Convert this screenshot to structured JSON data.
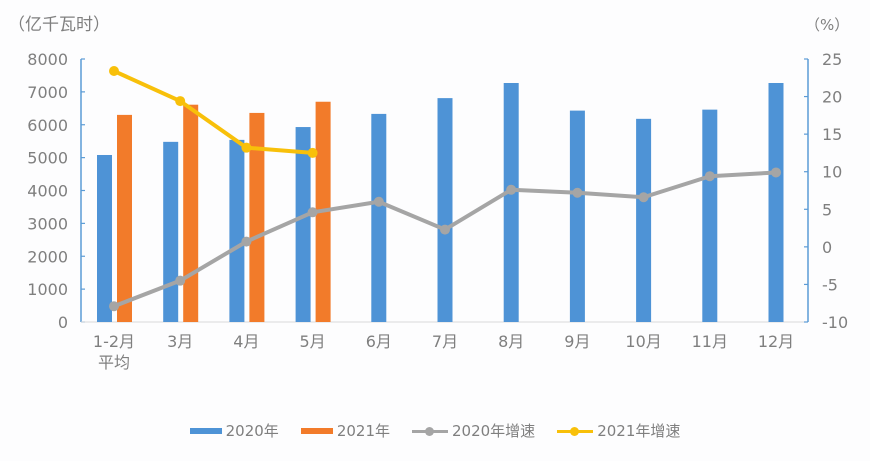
{
  "chart_data": {
    "type": "bar+line (dual axis)",
    "title": "",
    "ylabel_left": "（亿千瓦时）",
    "ylabel_right": "（%）",
    "xlabel": "",
    "categories": [
      "1-2月\n平均",
      "3月",
      "4月",
      "5月",
      "6月",
      "7月",
      "8月",
      "9月",
      "10月",
      "11月",
      "12月"
    ],
    "category_labels": [
      {
        "line1": "1-2月",
        "line2": "平均"
      },
      {
        "line1": "3月",
        "line2": ""
      },
      {
        "line1": "4月",
        "line2": ""
      },
      {
        "line1": "5月",
        "line2": ""
      },
      {
        "line1": "6月",
        "line2": ""
      },
      {
        "line1": "7月",
        "line2": ""
      },
      {
        "line1": "8月",
        "line2": ""
      },
      {
        "line1": "9月",
        "line2": ""
      },
      {
        "line1": "10月",
        "line2": ""
      },
      {
        "line1": "11月",
        "line2": ""
      },
      {
        "line1": "12月",
        "line2": ""
      }
    ],
    "ylim_left": [
      0,
      8000
    ],
    "yticks_left": [
      "0",
      "1000",
      "2000",
      "3000",
      "4000",
      "5000",
      "6000",
      "7000",
      "8000"
    ],
    "ylim_right": [
      -10,
      25
    ],
    "yticks_right": [
      "-10",
      "-5",
      "0",
      "5",
      "10",
      "15",
      "20",
      "25"
    ],
    "grid": false,
    "legend_position": "bottom",
    "series": [
      {
        "name": "2020年",
        "type": "bar",
        "axis": "left",
        "color": "#4e93d6",
        "values": [
          5080,
          5480,
          5540,
          5930,
          6330,
          6810,
          7270,
          6430,
          6180,
          6460,
          7270
        ]
      },
      {
        "name": "2021年",
        "type": "bar",
        "axis": "left",
        "color": "#f27b2a",
        "values": [
          6300,
          6610,
          6360,
          6700,
          null,
          null,
          null,
          null,
          null,
          null,
          null
        ]
      },
      {
        "name": "2020年增速",
        "type": "line",
        "axis": "right",
        "color": "#a5a5a5",
        "values": [
          -7.9,
          -4.5,
          0.7,
          4.6,
          6.0,
          2.3,
          7.6,
          7.2,
          6.6,
          9.4,
          9.9
        ]
      },
      {
        "name": "2021年增速",
        "type": "line",
        "axis": "right",
        "color": "#f8c00a",
        "values": [
          23.4,
          19.4,
          13.2,
          12.5,
          null,
          null,
          null,
          null,
          null,
          null,
          null
        ]
      }
    ]
  },
  "legend": {
    "items": [
      {
        "label": "2020年",
        "kind": "bar",
        "color": "#4e93d6"
      },
      {
        "label": "2021年",
        "kind": "bar",
        "color": "#f27b2a"
      },
      {
        "label": "2020年增速",
        "kind": "line",
        "color": "#a5a5a5"
      },
      {
        "label": "2021年增速",
        "kind": "line",
        "color": "#f8c00a"
      }
    ]
  },
  "axis_color": "#5b9bd5"
}
